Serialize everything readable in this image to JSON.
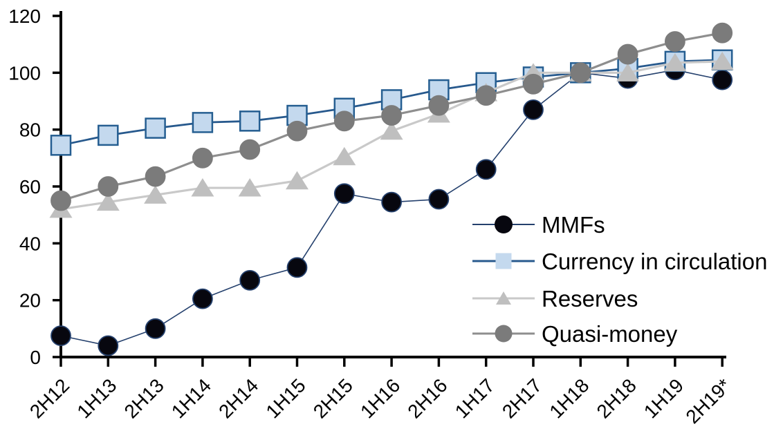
{
  "chart_data": {
    "type": "line",
    "title": "",
    "xlabel": "",
    "ylabel": "",
    "categories": [
      "2H12",
      "1H13",
      "2H13",
      "1H14",
      "2H14",
      "1H15",
      "2H15",
      "1H16",
      "2H16",
      "1H17",
      "2H17",
      "1H18",
      "2H18",
      "1H19",
      "2H19*"
    ],
    "series": [
      {
        "name": "MMFs",
        "marker": "circle",
        "marker_fill": "#07070f",
        "marker_stroke": "#24406d",
        "line_color": "#24406d",
        "values": [
          7.5,
          4,
          10,
          20.5,
          27,
          31.5,
          57.5,
          54.5,
          55.5,
          66,
          87,
          100,
          98,
          101,
          97.5
        ]
      },
      {
        "name": "Currency in circulation",
        "marker": "square",
        "marker_fill": "#c4d9ee",
        "marker_stroke": "#255e91",
        "line_color": "#27598d",
        "values": [
          74.5,
          78,
          80.5,
          82.5,
          83,
          85,
          87.5,
          90.5,
          94,
          96.5,
          98.5,
          100,
          101.5,
          104,
          104.5
        ]
      },
      {
        "name": "Reserves",
        "marker": "triangle",
        "marker_fill": "#bfbfbf",
        "marker_stroke": "#bfbfbf",
        "line_color": "#c9c9c9",
        "values": [
          52,
          54.5,
          57,
          59.5,
          59.5,
          62,
          70.5,
          79.5,
          85.5,
          93,
          100,
          100,
          100,
          103.5,
          104
        ]
      },
      {
        "name": "Quasi-money",
        "marker": "circle",
        "marker_fill": "#7b7b7b",
        "marker_stroke": "#7b7b7b",
        "line_color": "#8e8e8e",
        "values": [
          55,
          60,
          63.5,
          70,
          73,
          79.5,
          83,
          85,
          88.5,
          92,
          96,
          100,
          106.5,
          111,
          114
        ]
      }
    ],
    "y_ticks": [
      0,
      20,
      40,
      60,
      80,
      100,
      120
    ],
    "ylim": [
      0,
      120
    ],
    "grid": false,
    "legend_position": "inside-right",
    "axis_color": "#000000",
    "background_color": "#ffffff"
  }
}
